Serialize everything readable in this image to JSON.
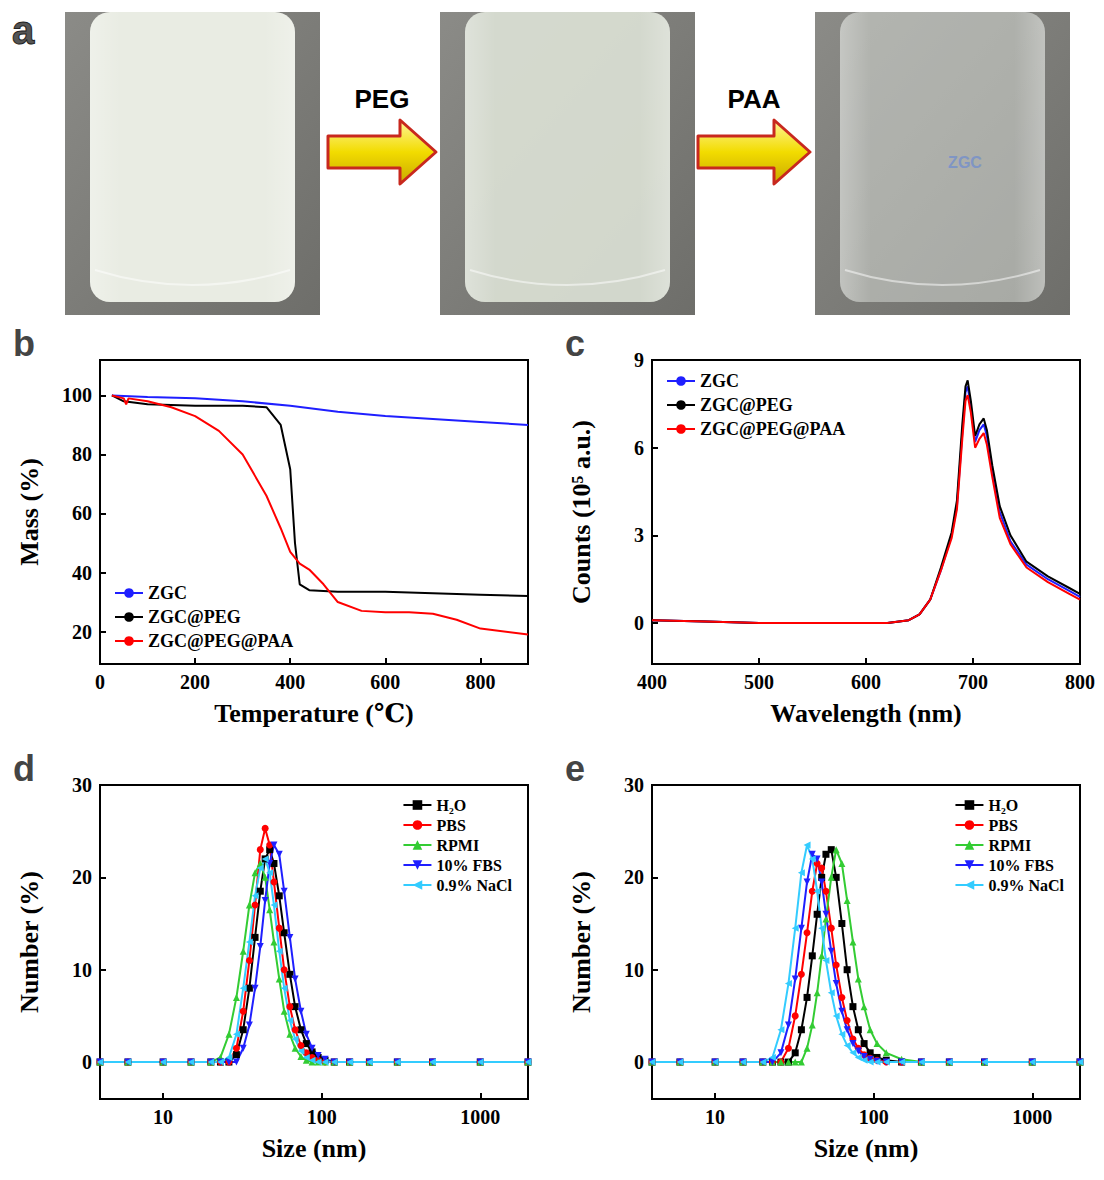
{
  "diagram": {
    "letter": "a",
    "steps": [
      "PEG",
      "PAA"
    ],
    "vial_text": "ZGC"
  },
  "chart_data": [
    {
      "type": "line",
      "title": "b",
      "x_label": "Temperature (℃)",
      "y_label": "Mass (%)",
      "xlim": [
        0,
        900
      ],
      "xticks": [
        0,
        200,
        400,
        600,
        800
      ],
      "ylim": [
        9,
        112
      ],
      "yticks": [
        20,
        40,
        60,
        80,
        100
      ],
      "grid": false,
      "legend": "lower left",
      "marker": "none",
      "series": [
        {
          "name": "ZGC",
          "color": "#1f1fff",
          "x": [
            25,
            100,
            200,
            300,
            400,
            500,
            600,
            700,
            800,
            900
          ],
          "values": [
            100,
            99.5,
            99,
            98,
            96.5,
            94.5,
            93,
            92,
            91,
            90
          ]
        },
        {
          "name": "ZGC@PEG",
          "color": "#000000",
          "x": [
            25,
            50,
            100,
            200,
            300,
            350,
            380,
            400,
            410,
            420,
            440,
            500,
            600,
            700,
            800,
            900
          ],
          "values": [
            100,
            98,
            97,
            96.5,
            96.5,
            96,
            90,
            75,
            50,
            36,
            34,
            33.5,
            33.5,
            33,
            32.5,
            32
          ]
        },
        {
          "name": "ZGC@PEG@PAA",
          "color": "#ff0000",
          "x": [
            25,
            50,
            55,
            60,
            100,
            150,
            200,
            250,
            300,
            350,
            380,
            400,
            420,
            440,
            470,
            500,
            550,
            600,
            650,
            700,
            750,
            800,
            900
          ],
          "values": [
            100,
            99,
            97,
            99,
            98,
            96,
            93,
            88,
            80,
            66,
            55,
            47,
            43,
            41,
            36,
            30,
            27,
            26.5,
            26.5,
            26,
            24,
            21,
            19
          ]
        }
      ]
    },
    {
      "type": "line",
      "title": "c",
      "x_label": "Wavelength (nm)",
      "y_label": "Counts (10⁵ a.u.)",
      "xlim": [
        400,
        800
      ],
      "xticks": [
        400,
        500,
        600,
        700,
        800
      ],
      "ylim": [
        -1.4,
        9
      ],
      "yticks": [
        0,
        3,
        6,
        9
      ],
      "grid": false,
      "legend": "upper left",
      "marker": "none",
      "x": [
        400,
        450,
        500,
        550,
        600,
        620,
        640,
        650,
        660,
        670,
        680,
        685,
        690,
        693,
        695,
        698,
        702,
        706,
        710,
        713,
        718,
        725,
        735,
        750,
        770,
        790,
        800
      ],
      "series": [
        {
          "name": "ZGC",
          "color": "#1f1fff",
          "values": [
            0.1,
            0.05,
            0,
            0,
            0,
            0,
            0.1,
            0.3,
            0.8,
            1.8,
            3.0,
            4.0,
            6.5,
            7.9,
            8.1,
            7.4,
            6.2,
            6.6,
            6.8,
            6.4,
            5.2,
            3.8,
            2.8,
            2.0,
            1.5,
            1.1,
            0.9
          ]
        },
        {
          "name": "ZGC@PEG",
          "color": "#000000",
          "values": [
            0.1,
            0.05,
            0,
            0,
            0,
            0,
            0.1,
            0.3,
            0.8,
            1.9,
            3.1,
            4.2,
            6.8,
            8.1,
            8.3,
            7.6,
            6.4,
            6.8,
            7.0,
            6.6,
            5.4,
            4.0,
            3.0,
            2.1,
            1.6,
            1.2,
            1.0
          ]
        },
        {
          "name": "ZGC@PEG@PAA",
          "color": "#ff0000",
          "values": [
            0.1,
            0.05,
            0,
            0,
            0,
            0,
            0.1,
            0.3,
            0.8,
            1.8,
            2.9,
            3.9,
            6.3,
            7.6,
            7.8,
            7.2,
            6.0,
            6.3,
            6.5,
            6.1,
            5.0,
            3.6,
            2.7,
            1.9,
            1.4,
            1.0,
            0.8
          ]
        }
      ]
    },
    {
      "type": "line",
      "title": "d",
      "x_label": "Size (nm)",
      "y_label": "Number (%)",
      "log": "x",
      "xlim": [
        4,
        2000
      ],
      "xticks": [
        10,
        100,
        1000
      ],
      "ylim": [
        -4,
        30
      ],
      "yticks": [
        0,
        10,
        20,
        30
      ],
      "grid": false,
      "legend": "upper right",
      "x": [
        4,
        6,
        10,
        15,
        20,
        23,
        26,
        29,
        32,
        35,
        38,
        41,
        44,
        47,
        50,
        54,
        58,
        63,
        68,
        74,
        80,
        87,
        95,
        105,
        120,
        150,
        200,
        300,
        500,
        1000,
        2000
      ],
      "series": [
        {
          "name": "H₂O",
          "color": "#000000",
          "marker": "square",
          "values": [
            0,
            0,
            0,
            0,
            0,
            0,
            0,
            0.8,
            3.5,
            8,
            13.5,
            18.5,
            22,
            23,
            21.5,
            18,
            14,
            9.5,
            6,
            3.5,
            2,
            1.1,
            0.5,
            0.2,
            0,
            0,
            0,
            0,
            0,
            0,
            0
          ]
        },
        {
          "name": "PBS",
          "color": "#ff0000",
          "marker": "circle",
          "values": [
            0,
            0,
            0,
            0,
            0,
            0,
            0,
            1.5,
            5.5,
            11,
            17,
            23,
            25.3,
            23.5,
            19.5,
            14.5,
            10,
            6,
            3.5,
            1.8,
            1,
            0.5,
            0.2,
            0,
            0,
            0,
            0,
            0,
            0,
            0,
            0
          ]
        },
        {
          "name": "RPMI",
          "color": "#33cc33",
          "marker": "triangle-up",
          "values": [
            0,
            0,
            0,
            0,
            0,
            0.5,
            3,
            7,
            12,
            17,
            20.5,
            21.5,
            20,
            16.5,
            13,
            9,
            5.5,
            3,
            1.5,
            0.6,
            0.2,
            0,
            0,
            0,
            0,
            0,
            0,
            0,
            0,
            0,
            0
          ]
        },
        {
          "name": "10% FBS",
          "color": "#1f1fff",
          "marker": "triangle-down",
          "values": [
            0,
            0,
            0,
            0,
            0,
            0,
            0,
            0,
            1.5,
            4,
            8,
            12.5,
            17.5,
            21.5,
            23.5,
            22.5,
            18.5,
            13.5,
            9,
            5.5,
            3,
            1.5,
            0.7,
            0.3,
            0,
            0,
            0,
            0,
            0,
            0,
            0
          ]
        },
        {
          "name": "0.9% NaCl",
          "color": "#33ccff",
          "marker": "triangle-left",
          "values": [
            0,
            0,
            0,
            0,
            0,
            0,
            0.5,
            3,
            8,
            13,
            18,
            21,
            22,
            20.5,
            17,
            12,
            8,
            4.5,
            2.5,
            1.2,
            0.5,
            0.2,
            0,
            0,
            0,
            0,
            0,
            0,
            0,
            0,
            0
          ]
        }
      ]
    },
    {
      "type": "line",
      "title": "e",
      "x_label": "Size (nm)",
      "y_label": "Number (%)",
      "log": "x",
      "xlim": [
        4,
        2000
      ],
      "xticks": [
        10,
        100,
        1000
      ],
      "ylim": [
        -4,
        30
      ],
      "yticks": [
        0,
        10,
        20,
        30
      ],
      "grid": false,
      "legend": "upper right",
      "x": [
        4,
        6,
        10,
        15,
        20,
        23,
        26,
        29,
        32,
        35,
        38,
        41,
        44,
        47,
        50,
        54,
        58,
        63,
        68,
        74,
        80,
        87,
        95,
        105,
        120,
        150,
        200,
        300,
        500,
        1000,
        2000
      ],
      "series": [
        {
          "name": "H₂O",
          "color": "#000000",
          "marker": "square",
          "values": [
            0,
            0,
            0,
            0,
            0,
            0,
            0,
            0,
            1,
            3.5,
            7,
            11.5,
            16,
            20,
            22.5,
            23,
            20,
            15,
            10,
            6,
            3.5,
            2,
            1,
            0.5,
            0.2,
            0,
            0,
            0,
            0,
            0,
            0
          ]
        },
        {
          "name": "PBS",
          "color": "#ff0000",
          "marker": "circle",
          "values": [
            0,
            0,
            0,
            0,
            0,
            0,
            0,
            1.5,
            5,
            9.5,
            14,
            18.5,
            21.5,
            21,
            18.5,
            14.5,
            10.5,
            7,
            4.5,
            2.5,
            1.5,
            0.8,
            0.4,
            0.2,
            0,
            0,
            0,
            0,
            0,
            0,
            0
          ]
        },
        {
          "name": "RPMI",
          "color": "#33cc33",
          "marker": "triangle-up",
          "values": [
            0,
            0,
            0,
            0,
            0,
            0,
            0,
            0,
            0,
            0,
            1.5,
            4,
            7.5,
            11.5,
            15.5,
            20,
            23,
            21.5,
            17.5,
            13,
            9,
            6,
            3.5,
            2,
            1,
            0.3,
            0,
            0,
            0,
            0,
            0
          ]
        },
        {
          "name": "10% FBS",
          "color": "#1f1fff",
          "marker": "triangle-down",
          "values": [
            0,
            0,
            0,
            0,
            0,
            0,
            1,
            4,
            9,
            14.5,
            19.5,
            22.5,
            22,
            19.5,
            16,
            12,
            8.5,
            5.5,
            3.5,
            2,
            1.2,
            0.6,
            0.3,
            0.1,
            0,
            0,
            0,
            0,
            0,
            0,
            0
          ]
        },
        {
          "name": "0.9% NaCl",
          "color": "#33ccff",
          "marker": "triangle-left",
          "values": [
            0,
            0,
            0,
            0,
            0,
            0.5,
            3.5,
            8.5,
            14.5,
            20.5,
            23.5,
            22,
            18.5,
            14.5,
            11,
            7.5,
            5,
            3,
            1.8,
            1,
            0.5,
            0.2,
            0,
            0,
            0,
            0,
            0,
            0,
            0,
            0,
            0
          ]
        }
      ]
    }
  ]
}
